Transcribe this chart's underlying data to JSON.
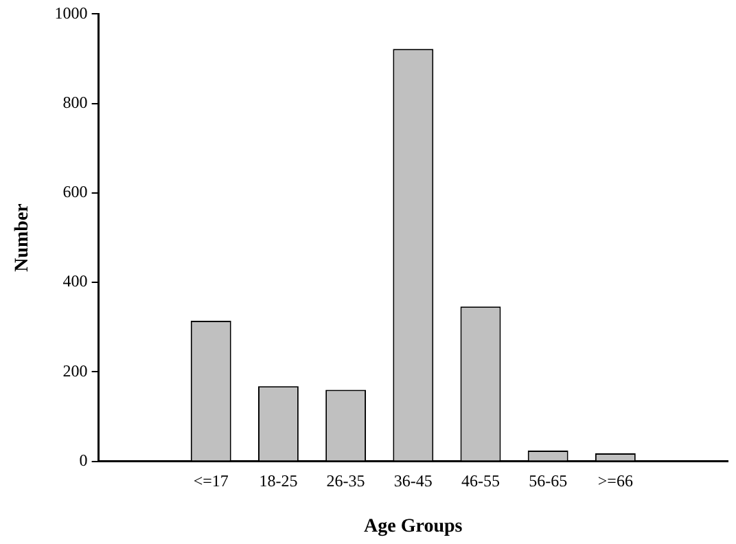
{
  "chart_data": {
    "type": "bar",
    "xlabel": "Age Groups",
    "ylabel": "Number",
    "categories": [
      "<=17",
      "18-25",
      "26-35",
      "36-45",
      "46-55",
      "56-65",
      ">=66"
    ],
    "values": [
      314,
      168,
      160,
      922,
      346,
      24,
      18
    ],
    "color": "#c0c0c0",
    "ylim": [
      0,
      1000
    ],
    "yticks": [
      0,
      200,
      400,
      600,
      800,
      1000
    ],
    "grid": false,
    "legend": false
  }
}
